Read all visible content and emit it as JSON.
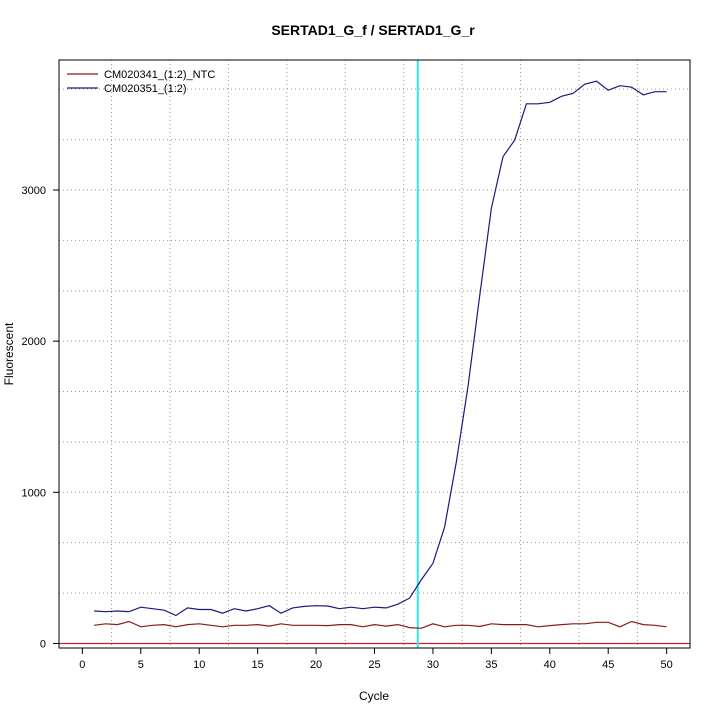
{
  "chart_data": {
    "type": "line",
    "title": "SERTAD1_G_f / SERTAD1_G_r",
    "xlabel": "Cycle",
    "ylabel": "Fluorescent",
    "xlim": [
      -2,
      52
    ],
    "ylim": [
      -30,
      3860
    ],
    "x_ticks": [
      0,
      5,
      10,
      15,
      20,
      25,
      30,
      35,
      40,
      45,
      50
    ],
    "y_ticks": [
      0,
      1000,
      2000,
      3000
    ],
    "x_grid": [
      2.5,
      7.5,
      12.5,
      17.5,
      22.5,
      27.5,
      32.5,
      37.5,
      42.5,
      47.5
    ],
    "y_grid": [
      0,
      333,
      667,
      1000,
      1333,
      1667,
      2000,
      2333,
      2667,
      3000,
      3333,
      3667
    ],
    "threshold_cycle": 28.7,
    "baseline_y": 0,
    "legend_position": "top-left",
    "colors": {
      "ntc": "#8b1a1a",
      "sample": "#1a1a80",
      "threshold": "#33e6e6",
      "baseline": "#cc2222",
      "grid": "#999999"
    },
    "series": [
      {
        "name": "CM020341_(1:2)_NTC",
        "color": "#8b1a1a",
        "x": [
          1,
          2,
          3,
          4,
          5,
          6,
          7,
          8,
          9,
          10,
          11,
          12,
          13,
          14,
          15,
          16,
          17,
          18,
          19,
          20,
          21,
          22,
          23,
          24,
          25,
          26,
          27,
          28,
          29,
          30,
          31,
          32,
          33,
          34,
          35,
          36,
          37,
          38,
          39,
          40,
          41,
          42,
          43,
          44,
          45,
          46,
          47,
          48,
          49,
          50
        ],
        "y": [
          120,
          130,
          125,
          145,
          110,
          120,
          125,
          110,
          125,
          130,
          120,
          110,
          120,
          120,
          125,
          115,
          130,
          120,
          120,
          120,
          118,
          125,
          125,
          110,
          125,
          115,
          125,
          105,
          100,
          130,
          110,
          120,
          120,
          112,
          130,
          125,
          125,
          125,
          110,
          118,
          125,
          130,
          130,
          140,
          140,
          110,
          145,
          125,
          120,
          110
        ]
      },
      {
        "name": "CM020351_(1:2)",
        "color": "#1a1a80",
        "x": [
          1,
          2,
          3,
          4,
          5,
          6,
          7,
          8,
          9,
          10,
          11,
          12,
          13,
          14,
          15,
          16,
          17,
          18,
          19,
          20,
          21,
          22,
          23,
          24,
          25,
          26,
          27,
          28,
          29,
          30,
          31,
          32,
          33,
          34,
          35,
          36,
          37,
          38,
          39,
          40,
          41,
          42,
          43,
          44,
          45,
          46,
          47,
          48,
          49,
          50
        ],
        "y": [
          215,
          210,
          215,
          210,
          240,
          230,
          220,
          185,
          235,
          225,
          225,
          200,
          230,
          215,
          230,
          250,
          200,
          235,
          245,
          250,
          248,
          230,
          240,
          230,
          240,
          235,
          260,
          300,
          420,
          530,
          770,
          1200,
          1700,
          2300,
          2880,
          3220,
          3330,
          3570,
          3570,
          3580,
          3620,
          3640,
          3700,
          3720,
          3660,
          3690,
          3680,
          3630,
          3650,
          3650
        ]
      }
    ]
  }
}
